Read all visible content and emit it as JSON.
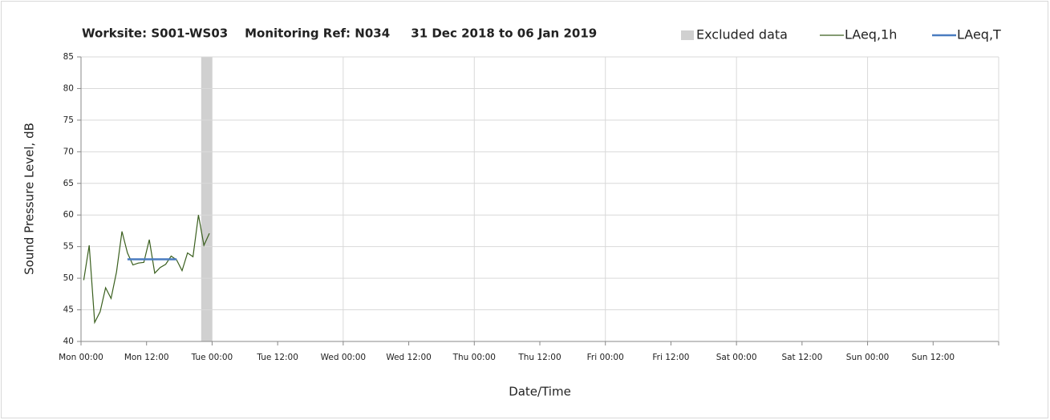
{
  "chart_data": {
    "type": "line",
    "title": "Worksite: S001-WS03    Monitoring Ref: N034     31 Dec 2018 to 06 Jan 2019",
    "xlabel": "Date/Time",
    "ylabel": "Sound Pressure Level, dB",
    "xlim": [
      0,
      168
    ],
    "ylim": [
      40,
      85
    ],
    "yticks": [
      40,
      45,
      50,
      55,
      60,
      65,
      70,
      75,
      80,
      85
    ],
    "xticks": [
      {
        "value": 0,
        "label": "Mon 00:00"
      },
      {
        "value": 12,
        "label": "Mon 12:00"
      },
      {
        "value": 24,
        "label": "Tue 00:00"
      },
      {
        "value": 36,
        "label": "Tue 12:00"
      },
      {
        "value": 48,
        "label": "Wed 00:00"
      },
      {
        "value": 60,
        "label": "Wed 12:00"
      },
      {
        "value": 72,
        "label": "Thu 00:00"
      },
      {
        "value": 84,
        "label": "Thu 12:00"
      },
      {
        "value": 96,
        "label": "Fri 00:00"
      },
      {
        "value": 108,
        "label": "Fri 12:00"
      },
      {
        "value": 120,
        "label": "Sat 00:00"
      },
      {
        "value": 132,
        "label": "Sat 12:00"
      },
      {
        "value": 144,
        "label": "Sun 00:00"
      },
      {
        "value": 156,
        "label": "Sun 12:00"
      }
    ],
    "grid": true,
    "excluded": {
      "name": "Excluded data",
      "color": "#d0d0d0",
      "ranges": [
        [
          22,
          24
        ]
      ]
    },
    "series": [
      {
        "name": "LAeq,1h",
        "color": "#3a5f1e",
        "width": 1.2,
        "x": [
          0.5,
          1.5,
          2.5,
          3.5,
          4.5,
          5.5,
          6.5,
          7.5,
          8.5,
          9.5,
          10.5,
          11.5,
          12.5,
          13.5,
          14.5,
          15.5,
          16.5,
          17.5,
          18.5,
          19.5,
          20.5,
          21.5,
          22.5,
          23.5
        ],
        "values": [
          49.7,
          55.2,
          43.0,
          44.7,
          48.5,
          46.8,
          51.0,
          57.4,
          54.0,
          52.1,
          52.4,
          52.5,
          56.1,
          50.8,
          51.7,
          52.2,
          53.5,
          52.9,
          51.2,
          54.0,
          53.4,
          60.0,
          55.2,
          57.1
        ]
      },
      {
        "name": "LAeq,T",
        "color": "#4a7cc0",
        "width": 2.5,
        "x": [
          8.5,
          17.5
        ],
        "values": [
          53.0,
          53.0
        ]
      }
    ]
  }
}
